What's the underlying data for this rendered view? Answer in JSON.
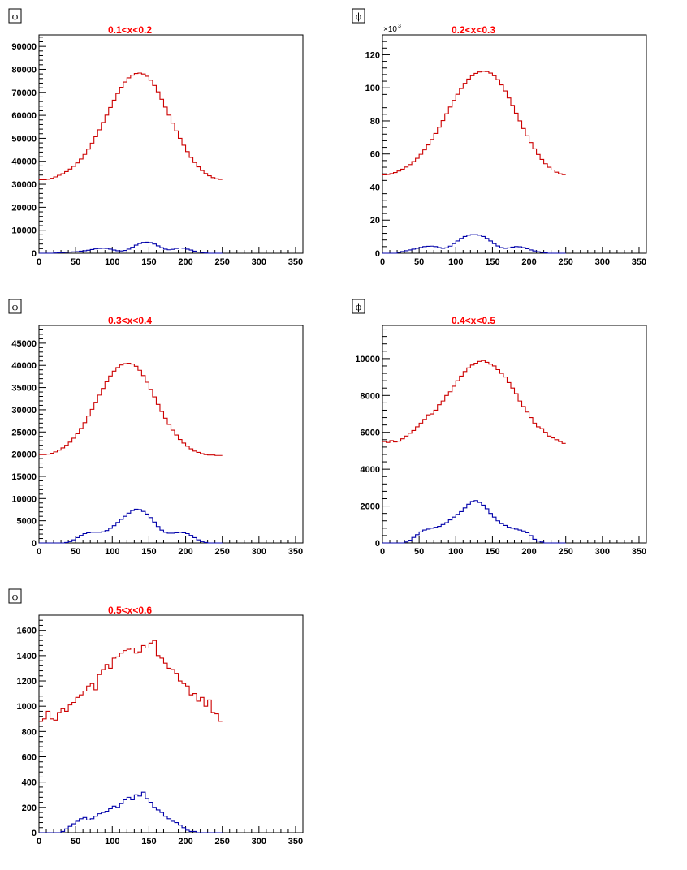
{
  "colors": {
    "title": "#ff0000",
    "series_red": "#cc0000",
    "series_blue": "#0000aa",
    "frame": "#000000"
  },
  "chart_data": [
    {
      "type": "line",
      "title": "0.1<x<0.2",
      "stat_label": "ϕ",
      "y_multiplier": "",
      "xlim": [
        0,
        360
      ],
      "ylim": [
        0,
        95000
      ],
      "x_ticks": [
        "0",
        "50",
        "100",
        "150",
        "200",
        "250",
        "300",
        "350"
      ],
      "y_ticks": [
        "0",
        "10000",
        "20000",
        "30000",
        "40000",
        "50000",
        "60000",
        "70000",
        "80000",
        "90000"
      ],
      "y_tick_values": [
        0,
        10000,
        20000,
        30000,
        40000,
        50000,
        60000,
        70000,
        80000,
        90000
      ],
      "bin_width": 5,
      "series": [
        {
          "color": "red",
          "values": [
            32000,
            32000,
            32200,
            32600,
            33200,
            33900,
            34600,
            35500,
            36600,
            37800,
            39300,
            41000,
            43000,
            45300,
            47900,
            50700,
            53700,
            56900,
            60100,
            63400,
            66600,
            69500,
            72200,
            74500,
            76300,
            77500,
            78200,
            78400,
            78000,
            77000,
            75300,
            73000,
            70200,
            67000,
            63600,
            60100,
            56600,
            53200,
            50000,
            47000,
            44200,
            41700,
            39500,
            37600,
            36000,
            34700,
            33700,
            32900,
            32400,
            32100
          ]
        },
        {
          "color": "blue",
          "values": [
            0,
            0,
            0,
            0,
            100,
            200,
            300,
            400,
            500,
            600,
            700,
            900,
            1100,
            1300,
            1600,
            1900,
            2100,
            2200,
            2100,
            1800,
            1400,
            1100,
            1000,
            1200,
            1800,
            2600,
            3500,
            4200,
            4700,
            4800,
            4600,
            4000,
            3200,
            2400,
            1800,
            1500,
            1700,
            2100,
            2300,
            2200,
            1800,
            1400,
            900,
            500,
            300,
            100,
            0,
            0,
            0,
            0
          ]
        }
      ]
    },
    {
      "type": "line",
      "title": "0.2<x<0.3",
      "stat_label": "ϕ",
      "y_multiplier": "×10",
      "y_multiplier_exp": "3",
      "xlim": [
        0,
        360
      ],
      "ylim": [
        0,
        132
      ],
      "x_ticks": [
        "0",
        "50",
        "100",
        "150",
        "200",
        "250",
        "300",
        "350"
      ],
      "y_ticks": [
        "0",
        "20",
        "40",
        "60",
        "80",
        "100",
        "120"
      ],
      "y_tick_values": [
        0,
        20,
        40,
        60,
        80,
        100,
        120
      ],
      "bin_width": 5,
      "series": [
        {
          "color": "red",
          "values": [
            47.4,
            47.6,
            48.1,
            48.8,
            49.7,
            50.8,
            52.1,
            53.6,
            55.4,
            57.4,
            59.8,
            62.5,
            65.5,
            68.8,
            72.4,
            76.2,
            80.2,
            84.3,
            88.4,
            92.4,
            96.1,
            99.6,
            102.7,
            105.3,
            107.3,
            108.7,
            109.6,
            110.0,
            109.8,
            108.9,
            107.3,
            104.9,
            101.8,
            98.1,
            93.9,
            89.4,
            84.7,
            80.0,
            75.4,
            71.0,
            66.9,
            63.1,
            59.7,
            56.7,
            54.1,
            52.0,
            50.3,
            49.0,
            48.0,
            47.5
          ]
        },
        {
          "color": "blue",
          "values": [
            0,
            0,
            0,
            0,
            0.5,
            1.0,
            1.5,
            2.0,
            2.5,
            3.0,
            3.5,
            4.0,
            4.2,
            4.3,
            4.0,
            3.4,
            3.0,
            3.3,
            4.3,
            5.8,
            7.4,
            8.9,
            10.1,
            10.9,
            11.2,
            11.2,
            10.9,
            10.1,
            8.9,
            7.4,
            5.8,
            4.4,
            3.4,
            3.0,
            3.2,
            3.7,
            4.0,
            3.9,
            3.4,
            2.7,
            2.0,
            1.4,
            0.9,
            0.5,
            0.2,
            0,
            0,
            0,
            0,
            0
          ]
        }
      ]
    },
    {
      "type": "line",
      "title": "0.3<x<0.4",
      "stat_label": "ϕ",
      "y_multiplier": "",
      "xlim": [
        0,
        360
      ],
      "ylim": [
        0,
        49000
      ],
      "x_ticks": [
        "0",
        "50",
        "100",
        "150",
        "200",
        "250",
        "300",
        "350"
      ],
      "y_ticks": [
        "0",
        "5000",
        "10000",
        "15000",
        "20000",
        "25000",
        "30000",
        "35000",
        "40000",
        "45000"
      ],
      "y_tick_values": [
        0,
        5000,
        10000,
        15000,
        20000,
        25000,
        30000,
        35000,
        40000,
        45000
      ],
      "bin_width": 5,
      "series": [
        {
          "color": "red",
          "values": [
            19900,
            19900,
            20000,
            20200,
            20500,
            20900,
            21400,
            22000,
            22700,
            23600,
            24600,
            25800,
            27100,
            28600,
            30100,
            31700,
            33300,
            34800,
            36300,
            37600,
            38700,
            39500,
            40100,
            40400,
            40500,
            40300,
            39800,
            38900,
            37700,
            36200,
            34600,
            32900,
            31200,
            29600,
            28100,
            26700,
            25400,
            24300,
            23300,
            22500,
            21800,
            21200,
            20700,
            20400,
            20100,
            19900,
            19800,
            19800,
            19700,
            19700
          ]
        },
        {
          "color": "blue",
          "values": [
            0,
            0,
            0,
            0,
            0,
            0,
            0,
            100,
            300,
            700,
            1200,
            1700,
            2100,
            2300,
            2400,
            2400,
            2400,
            2500,
            2800,
            3300,
            3900,
            4600,
            5300,
            6000,
            6700,
            7300,
            7600,
            7500,
            7100,
            6500,
            5700,
            4700,
            3700,
            2900,
            2400,
            2200,
            2200,
            2300,
            2400,
            2300,
            2100,
            1700,
            1200,
            700,
            300,
            100,
            0,
            0,
            0,
            0
          ]
        }
      ]
    },
    {
      "type": "line",
      "title": "0.4<x<0.5",
      "stat_label": "ϕ",
      "y_multiplier": "",
      "xlim": [
        0,
        360
      ],
      "ylim": [
        0,
        11800
      ],
      "x_ticks": [
        "0",
        "50",
        "100",
        "150",
        "200",
        "250",
        "300",
        "350"
      ],
      "y_ticks": [
        "0",
        "2000",
        "4000",
        "6000",
        "8000",
        "10000"
      ],
      "y_tick_values": [
        0,
        2000,
        4000,
        6000,
        8000,
        10000
      ],
      "bin_width": 5,
      "series": [
        {
          "color": "red",
          "values": [
            5500,
            5450,
            5550,
            5480,
            5520,
            5650,
            5800,
            5950,
            6100,
            6300,
            6500,
            6700,
            6950,
            7000,
            7200,
            7500,
            7700,
            8000,
            8200,
            8500,
            8800,
            9050,
            9300,
            9500,
            9650,
            9750,
            9850,
            9900,
            9800,
            9700,
            9600,
            9400,
            9200,
            9000,
            8700,
            8400,
            8100,
            7700,
            7400,
            7100,
            6800,
            6500,
            6300,
            6200,
            6000,
            5800,
            5700,
            5600,
            5500,
            5400
          ]
        },
        {
          "color": "blue",
          "values": [
            0,
            0,
            0,
            0,
            0,
            0,
            50,
            150,
            300,
            450,
            600,
            700,
            750,
            800,
            850,
            900,
            1000,
            1100,
            1250,
            1400,
            1550,
            1700,
            1900,
            2100,
            2250,
            2300,
            2200,
            2050,
            1850,
            1600,
            1400,
            1200,
            1050,
            950,
            850,
            800,
            750,
            700,
            650,
            550,
            400,
            200,
            100,
            50,
            0,
            0,
            0,
            0,
            0,
            0
          ]
        }
      ]
    },
    {
      "type": "line",
      "title": "0.5<x<0.6",
      "stat_label": "ϕ",
      "y_multiplier": "",
      "xlim": [
        0,
        360
      ],
      "ylim": [
        0,
        1720
      ],
      "x_ticks": [
        "0",
        "50",
        "100",
        "150",
        "200",
        "250",
        "300",
        "350"
      ],
      "y_ticks": [
        "0",
        "200",
        "400",
        "600",
        "800",
        "1000",
        "1200",
        "1400",
        "1600"
      ],
      "y_tick_values": [
        0,
        200,
        400,
        600,
        800,
        1000,
        1200,
        1400,
        1600
      ],
      "bin_width": 5,
      "series": [
        {
          "color": "red",
          "values": [
            880,
            900,
            960,
            900,
            890,
            950,
            980,
            960,
            1010,
            1030,
            1070,
            1090,
            1120,
            1160,
            1180,
            1130,
            1250,
            1290,
            1330,
            1300,
            1380,
            1390,
            1420,
            1440,
            1450,
            1460,
            1420,
            1430,
            1480,
            1460,
            1500,
            1520,
            1400,
            1380,
            1340,
            1300,
            1290,
            1260,
            1200,
            1180,
            1160,
            1090,
            1100,
            1040,
            1070,
            1000,
            1050,
            950,
            940,
            880
          ]
        },
        {
          "color": "blue",
          "values": [
            0,
            0,
            0,
            0,
            0,
            0,
            10,
            30,
            50,
            70,
            90,
            110,
            120,
            100,
            110,
            130,
            150,
            160,
            170,
            190,
            210,
            200,
            230,
            260,
            280,
            260,
            300,
            290,
            320,
            270,
            240,
            200,
            180,
            160,
            130,
            110,
            90,
            80,
            60,
            40,
            20,
            10,
            10,
            0,
            0,
            0,
            0,
            0,
            0,
            0
          ]
        }
      ]
    }
  ]
}
